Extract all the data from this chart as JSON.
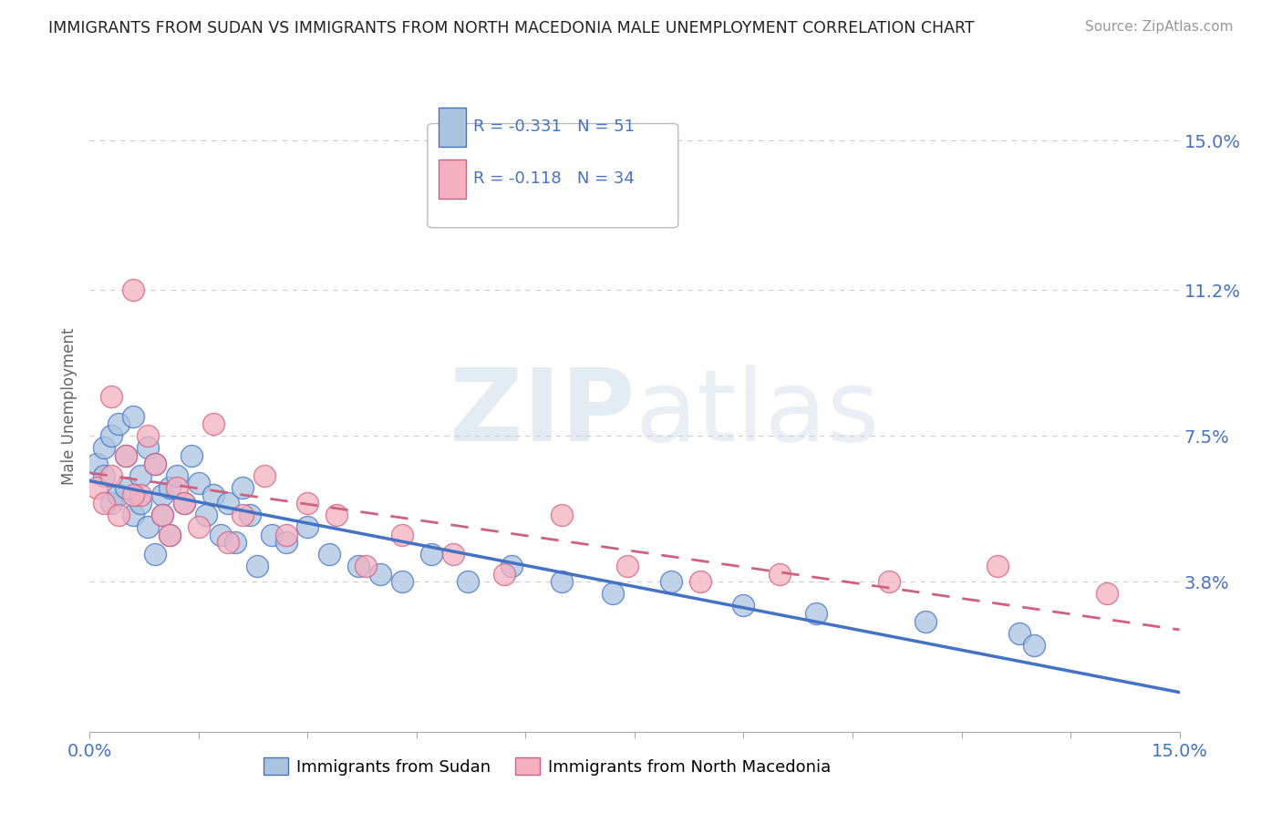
{
  "title": "IMMIGRANTS FROM SUDAN VS IMMIGRANTS FROM NORTH MACEDONIA MALE UNEMPLOYMENT CORRELATION CHART",
  "source": "Source: ZipAtlas.com",
  "ylabel": "Male Unemployment",
  "ytick_labels": [
    "3.8%",
    "7.5%",
    "11.2%",
    "15.0%"
  ],
  "ytick_values": [
    0.038,
    0.075,
    0.112,
    0.15
  ],
  "xlim": [
    0.0,
    0.15
  ],
  "ylim": [
    0.0,
    0.165
  ],
  "legend1_R": "-0.331",
  "legend1_N": "51",
  "legend2_R": "-0.118",
  "legend2_N": "34",
  "color_sudan": "#aac4e0",
  "color_sudan_line": "#4472c4",
  "color_macedonia": "#f4b0c0",
  "color_macedonia_line": "#d06080",
  "sudan_x": [
    0.001,
    0.002,
    0.002,
    0.003,
    0.003,
    0.004,
    0.004,
    0.005,
    0.005,
    0.006,
    0.006,
    0.007,
    0.007,
    0.008,
    0.008,
    0.009,
    0.009,
    0.01,
    0.01,
    0.011,
    0.011,
    0.012,
    0.013,
    0.014,
    0.015,
    0.016,
    0.017,
    0.018,
    0.019,
    0.02,
    0.021,
    0.022,
    0.023,
    0.025,
    0.027,
    0.03,
    0.033,
    0.037,
    0.04,
    0.043,
    0.047,
    0.052,
    0.058,
    0.065,
    0.072,
    0.08,
    0.09,
    0.1,
    0.115,
    0.128,
    0.13
  ],
  "sudan_y": [
    0.068,
    0.072,
    0.065,
    0.058,
    0.075,
    0.06,
    0.078,
    0.062,
    0.07,
    0.055,
    0.08,
    0.058,
    0.065,
    0.072,
    0.052,
    0.068,
    0.045,
    0.06,
    0.055,
    0.062,
    0.05,
    0.065,
    0.058,
    0.07,
    0.063,
    0.055,
    0.06,
    0.05,
    0.058,
    0.048,
    0.062,
    0.055,
    0.042,
    0.05,
    0.048,
    0.052,
    0.045,
    0.042,
    0.04,
    0.038,
    0.045,
    0.038,
    0.042,
    0.038,
    0.035,
    0.038,
    0.032,
    0.03,
    0.028,
    0.025,
    0.022
  ],
  "macedonia_x": [
    0.001,
    0.002,
    0.003,
    0.004,
    0.005,
    0.006,
    0.007,
    0.008,
    0.009,
    0.01,
    0.011,
    0.012,
    0.013,
    0.015,
    0.017,
    0.019,
    0.021,
    0.024,
    0.027,
    0.03,
    0.034,
    0.038,
    0.043,
    0.05,
    0.057,
    0.065,
    0.074,
    0.084,
    0.095,
    0.11,
    0.125,
    0.14,
    0.003,
    0.006
  ],
  "macedonia_y": [
    0.062,
    0.058,
    0.065,
    0.055,
    0.07,
    0.112,
    0.06,
    0.075,
    0.068,
    0.055,
    0.05,
    0.062,
    0.058,
    0.052,
    0.078,
    0.048,
    0.055,
    0.065,
    0.05,
    0.058,
    0.055,
    0.042,
    0.05,
    0.045,
    0.04,
    0.055,
    0.042,
    0.038,
    0.04,
    0.038,
    0.042,
    0.035,
    0.085,
    0.06
  ],
  "watermark_zip": "ZIP",
  "watermark_atlas": "atlas",
  "background_color": "#ffffff",
  "grid_color": "#cccccc"
}
